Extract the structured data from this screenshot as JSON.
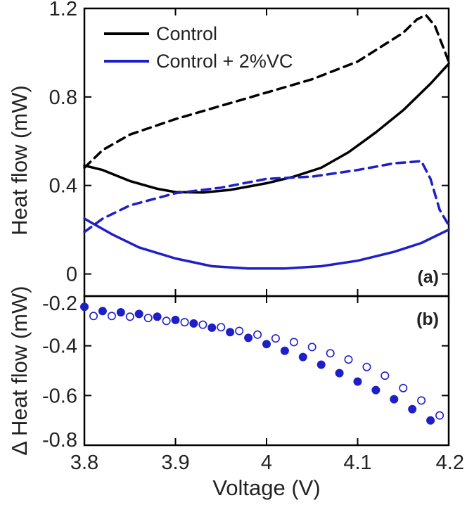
{
  "chart_data": [
    {
      "panel": "(a)",
      "type": "line",
      "ylabel": "Heat flow (mW)",
      "xlim": [
        3.8,
        4.2
      ],
      "ylim": [
        -0.1,
        1.2
      ],
      "yticks": [
        "1.2",
        "0.8",
        "0.4",
        "0"
      ],
      "ytick_values": [
        1.2,
        0.8,
        0.4,
        0
      ],
      "legend": {
        "position": "top-left",
        "entries": [
          {
            "label": "Control",
            "color": "#000000"
          },
          {
            "label": "Control + 2%VC",
            "color": "#1f1fc8"
          }
        ]
      },
      "series": [
        {
          "group": "Control",
          "style": "dashed",
          "color": "#000000",
          "x": [
            3.8,
            3.82,
            3.85,
            3.9,
            3.95,
            4.0,
            4.05,
            4.1,
            4.15,
            4.165,
            4.175,
            4.185,
            4.2
          ],
          "y": [
            0.48,
            0.56,
            0.63,
            0.7,
            0.76,
            0.82,
            0.88,
            0.96,
            1.09,
            1.15,
            1.17,
            1.12,
            0.96
          ]
        },
        {
          "group": "Control",
          "style": "solid",
          "color": "#000000",
          "x": [
            3.8,
            3.82,
            3.85,
            3.88,
            3.9,
            3.93,
            3.96,
            4.0,
            4.03,
            4.06,
            4.09,
            4.12,
            4.15,
            4.18,
            4.2
          ],
          "y": [
            0.49,
            0.47,
            0.42,
            0.385,
            0.37,
            0.368,
            0.38,
            0.41,
            0.44,
            0.48,
            0.55,
            0.64,
            0.74,
            0.86,
            0.95
          ]
        },
        {
          "group": "Control + 2%VC",
          "style": "dashed",
          "color": "#1f1fc8",
          "x": [
            3.8,
            3.82,
            3.85,
            3.9,
            3.95,
            4.0,
            4.05,
            4.1,
            4.14,
            4.17,
            4.18,
            4.19,
            4.2
          ],
          "y": [
            0.19,
            0.25,
            0.31,
            0.365,
            0.39,
            0.43,
            0.44,
            0.47,
            0.5,
            0.51,
            0.43,
            0.29,
            0.22
          ]
        },
        {
          "group": "Control + 2%VC",
          "style": "solid",
          "color": "#1f1fc8",
          "x": [
            3.8,
            3.83,
            3.86,
            3.9,
            3.94,
            3.98,
            4.02,
            4.06,
            4.1,
            4.14,
            4.17,
            4.2
          ],
          "y": [
            0.25,
            0.18,
            0.12,
            0.07,
            0.035,
            0.025,
            0.025,
            0.035,
            0.06,
            0.1,
            0.14,
            0.2
          ]
        }
      ]
    },
    {
      "panel": "(b)",
      "type": "scatter",
      "xlabel": "Voltage (V)",
      "ylabel": "Δ Heat flow (mW)",
      "xlim": [
        3.8,
        4.2
      ],
      "ylim": [
        -0.8,
        -0.2
      ],
      "xticks": [
        "3.8",
        "3.9",
        "4",
        "4.1",
        "4.2"
      ],
      "xtick_values": [
        3.8,
        3.9,
        4.0,
        4.1,
        4.2
      ],
      "yticks": [
        "-0.2",
        "-0.4",
        "-0.6",
        "-0.8"
      ],
      "ytick_values": [
        -0.2,
        -0.4,
        -0.6,
        -0.8
      ],
      "series": [
        {
          "marker": "filled",
          "color": "#1f1fc8",
          "x": [
            3.8,
            3.82,
            3.84,
            3.86,
            3.88,
            3.9,
            3.92,
            3.94,
            3.96,
            3.98,
            4.0,
            4.02,
            4.04,
            4.06,
            4.08,
            4.1,
            4.12,
            4.14,
            4.16,
            4.18
          ],
          "y": [
            -0.243,
            -0.26,
            -0.265,
            -0.272,
            -0.283,
            -0.296,
            -0.31,
            -0.327,
            -0.345,
            -0.368,
            -0.393,
            -0.42,
            -0.445,
            -0.476,
            -0.51,
            -0.544,
            -0.578,
            -0.615,
            -0.655,
            -0.7
          ]
        },
        {
          "marker": "open",
          "color": "#1f1fc8",
          "x": [
            3.81,
            3.83,
            3.85,
            3.87,
            3.89,
            3.91,
            3.93,
            3.95,
            3.97,
            3.99,
            4.01,
            4.03,
            4.05,
            4.07,
            4.09,
            4.11,
            4.13,
            4.15,
            4.17,
            4.19
          ],
          "y": [
            -0.28,
            -0.28,
            -0.283,
            -0.288,
            -0.3,
            -0.305,
            -0.315,
            -0.325,
            -0.34,
            -0.355,
            -0.37,
            -0.385,
            -0.405,
            -0.43,
            -0.455,
            -0.485,
            -0.52,
            -0.57,
            -0.62,
            -0.68
          ]
        }
      ]
    }
  ]
}
